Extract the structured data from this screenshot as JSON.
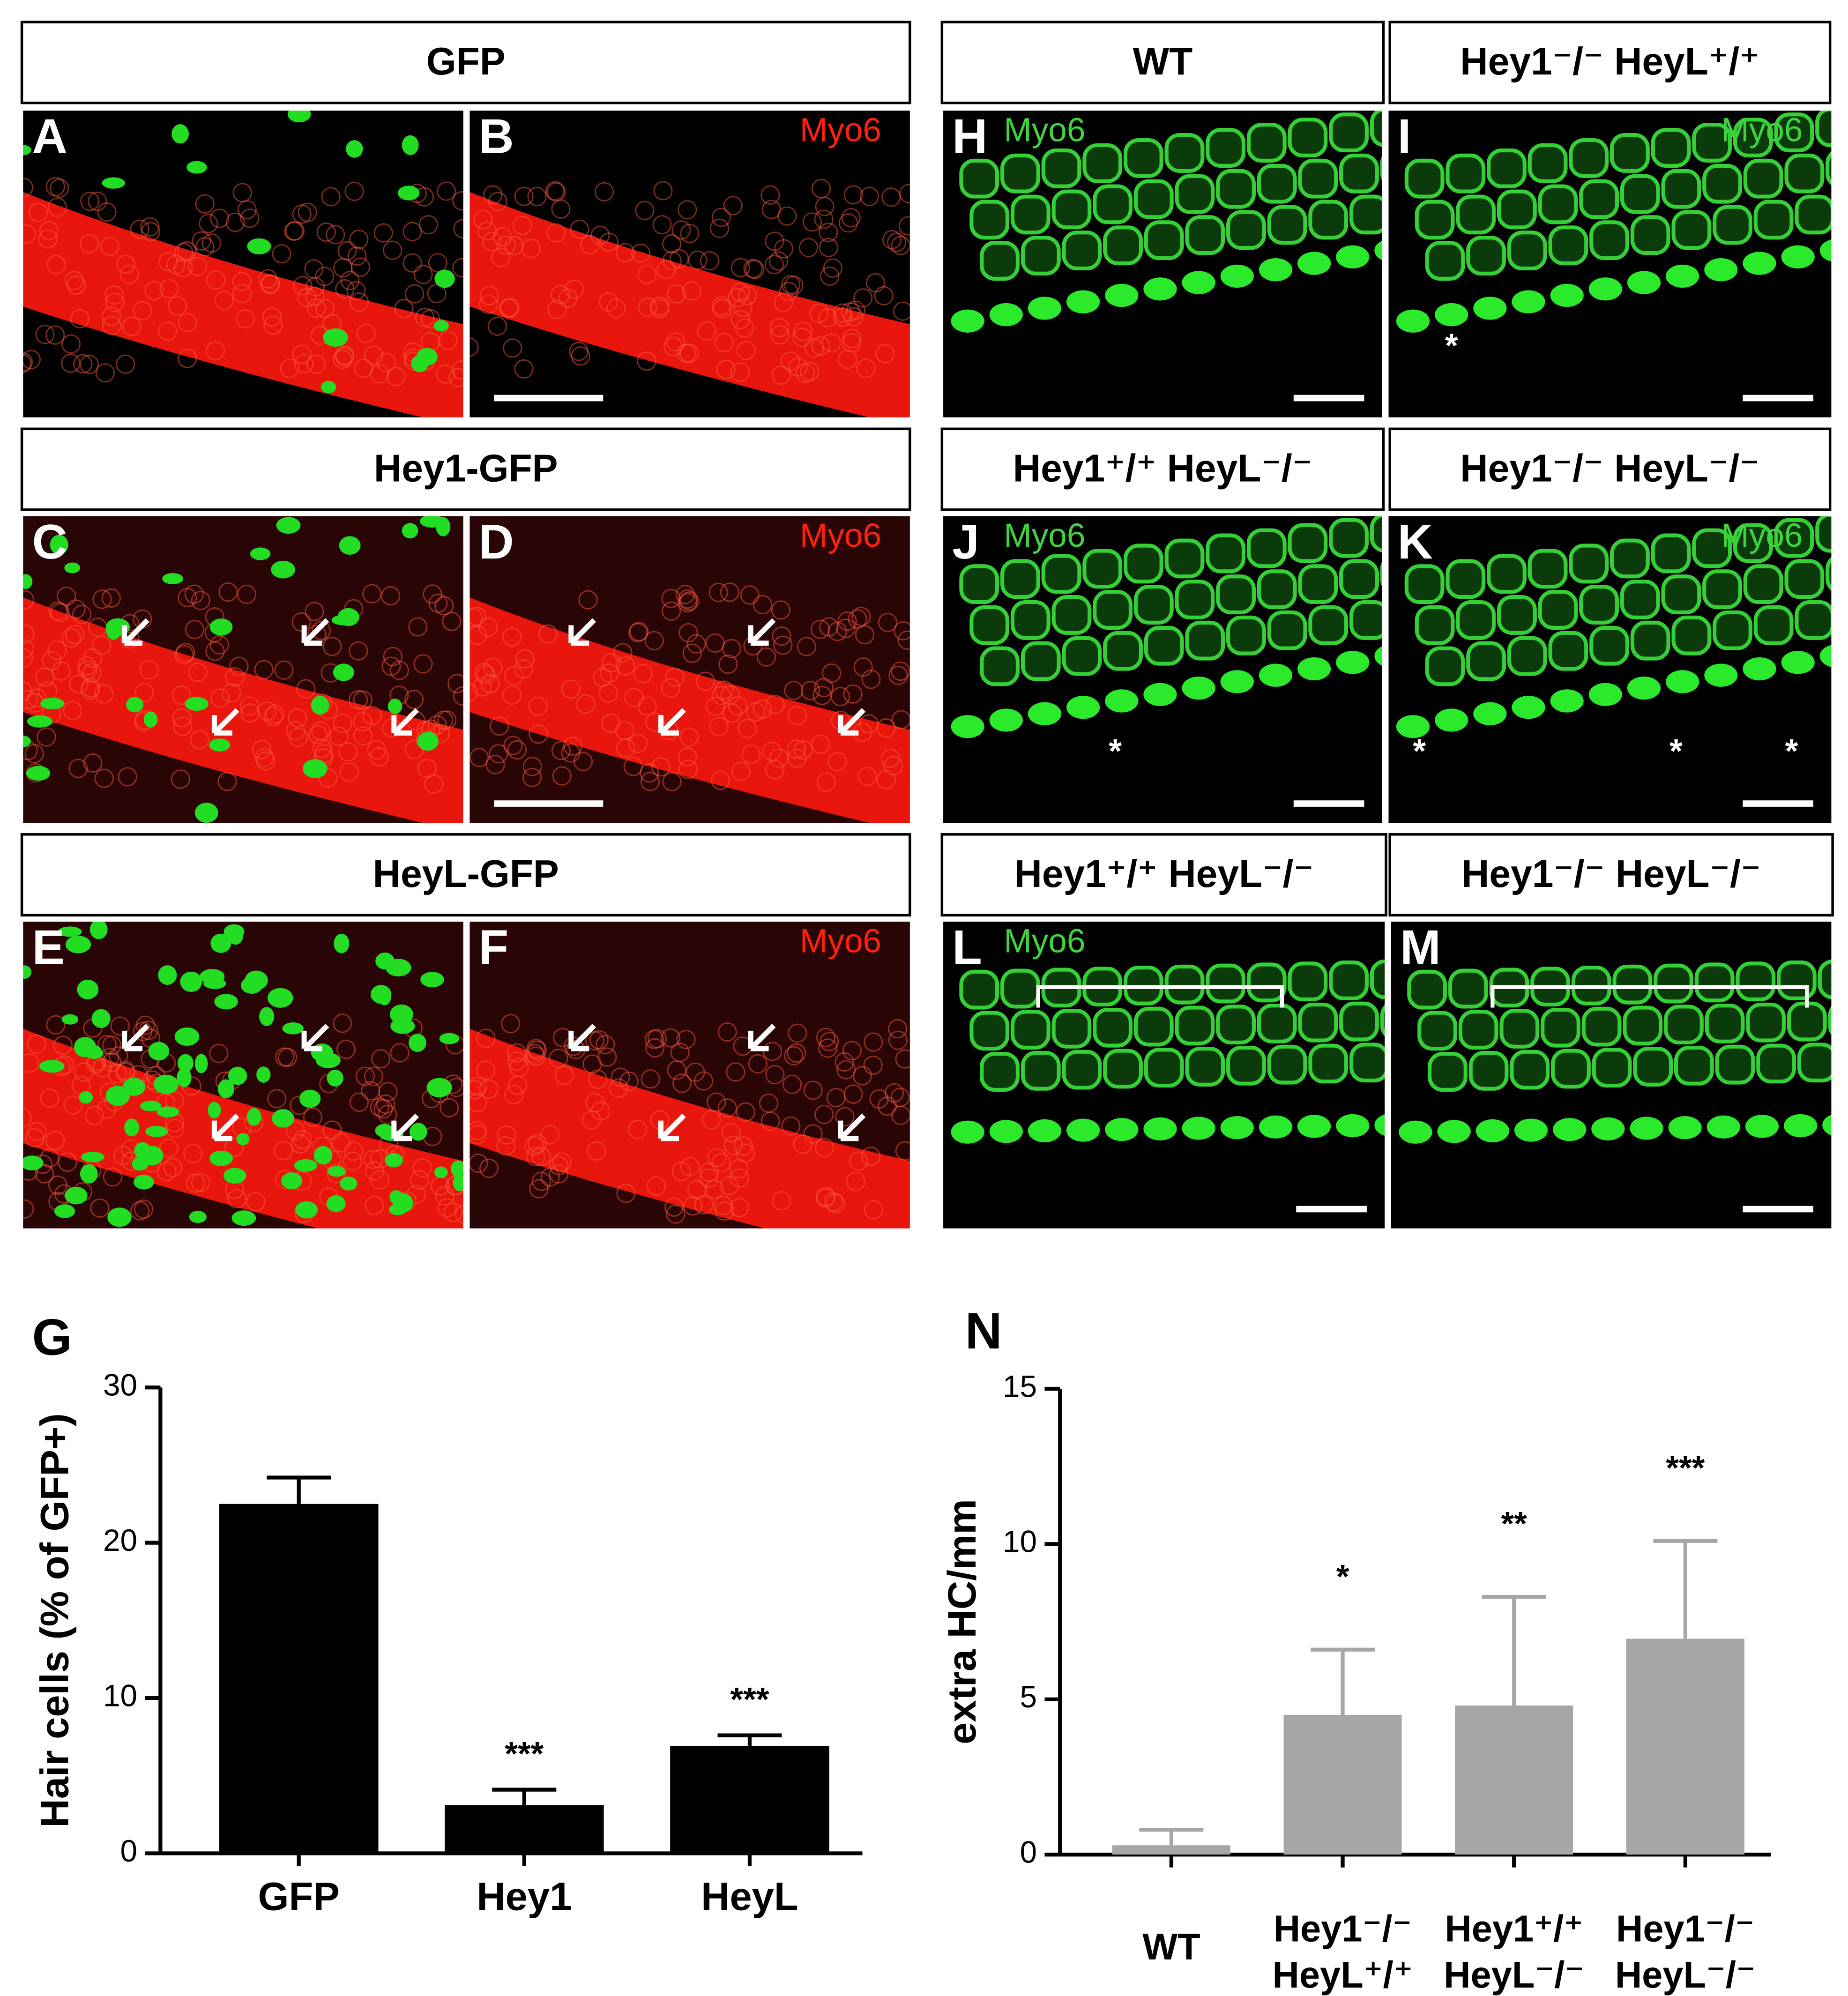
{
  "headers": [
    "GFP",
    "Hey1-GFP",
    "HeyL-GFP",
    "WT",
    "Hey1⁻/⁻ HeyL⁺/⁺",
    "Hey1⁺/⁺ HeyL⁻/⁻",
    "Hey1⁻/⁻ HeyL⁻/⁻",
    "Hey1⁺/⁺ HeyL⁻/⁻",
    "Hey1⁻/⁻ HeyL⁻/⁻"
  ],
  "panels": [
    {
      "letter": "A"
    },
    {
      "letter": "B",
      "stain": "Myo6"
    },
    {
      "letter": "C"
    },
    {
      "letter": "D",
      "stain": "Myo6"
    },
    {
      "letter": "E"
    },
    {
      "letter": "F",
      "stain": "Myo6"
    },
    {
      "letter": "H",
      "stain": "Myo6"
    },
    {
      "letter": "I",
      "stain": "Myo6",
      "asterisks": [
        "*"
      ]
    },
    {
      "letter": "J",
      "stain": "Myo6",
      "asterisks": [
        "*"
      ]
    },
    {
      "letter": "K",
      "stain": "Myo6",
      "asterisks": [
        "*",
        "*",
        "*"
      ]
    },
    {
      "letter": "L",
      "stain": "Myo6"
    },
    {
      "letter": "M"
    }
  ],
  "chart_data": [
    {
      "type": "bar",
      "title": "G",
      "ylabel": "Hair cells (% of GFP+)",
      "color": "#000000",
      "categories": [
        "GFP",
        "Hey1",
        "HeyL"
      ],
      "values": [
        22.5,
        3.1,
        6.9
      ],
      "errors": [
        1.7,
        1.0,
        0.7
      ],
      "ylim": [
        0,
        30
      ],
      "yticks": [
        0,
        10,
        20,
        30
      ],
      "annotations": [
        {
          "category": "Hey1",
          "text": "***"
        },
        {
          "category": "HeyL",
          "text": "***"
        }
      ]
    },
    {
      "type": "bar",
      "title": "N",
      "ylabel": "extra HC/mm",
      "color": "#a6a6a6",
      "categories": [
        [
          "WT"
        ],
        [
          "Hey1⁻/⁻",
          "HeyL⁺/⁺"
        ],
        [
          "Hey1⁺/⁺",
          "HeyL⁻/⁻"
        ],
        [
          "Hey1⁻/⁻",
          "HeyL⁻/⁻"
        ]
      ],
      "values": [
        0.3,
        4.5,
        4.8,
        6.95
      ],
      "errors": [
        0.5,
        2.1,
        3.5,
        3.15
      ],
      "ylim": [
        0,
        15
      ],
      "yticks": [
        0,
        5,
        10,
        15
      ],
      "annotations": [
        {
          "category": 1,
          "text": "*"
        },
        {
          "category": 2,
          "text": "**"
        },
        {
          "category": 3,
          "text": "***"
        }
      ]
    }
  ]
}
